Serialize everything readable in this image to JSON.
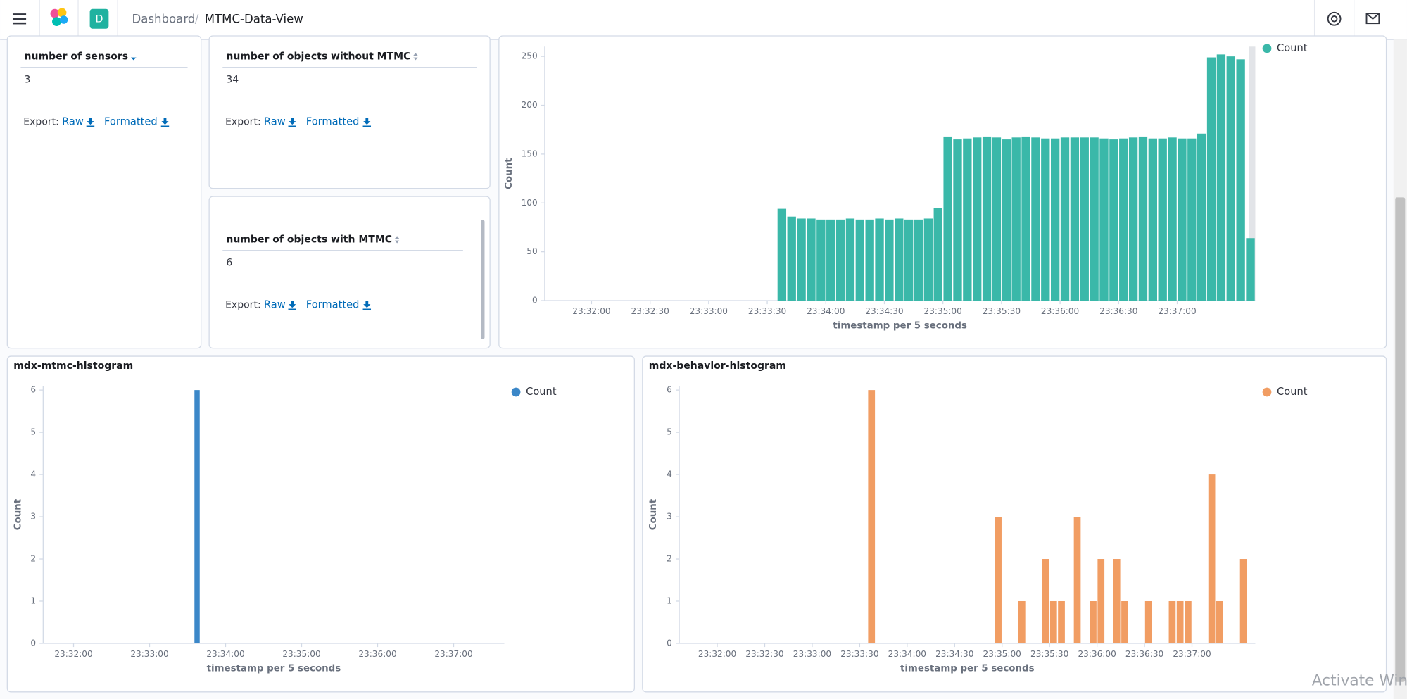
{
  "header": {
    "avatar": "D",
    "breadcrumbs": [
      "Dashboard",
      "MTMC-Data-View"
    ],
    "separator": "/"
  },
  "metrics": [
    {
      "title": "number of sensors",
      "value": 3,
      "export_label": "Export:",
      "raw": "Raw",
      "formatted": "Formatted"
    },
    {
      "title": "number of objects without MTMC",
      "value": 34,
      "export_label": "Export:",
      "raw": "Raw",
      "formatted": "Formatted"
    },
    {
      "title": "number of objects with MTMC",
      "value": 6,
      "export_label": "Export:",
      "raw": "Raw",
      "formatted": "Formatted"
    }
  ],
  "chart_data": [
    {
      "type": "bar",
      "x_label": "timestamp per 5 seconds",
      "y_label": "Count",
      "legend": "top-right",
      "x": [
        "23:33:35",
        "23:33:40",
        "23:33:45",
        "23:33:50",
        "23:33:55",
        "23:34:00",
        "23:34:05",
        "23:34:10",
        "23:34:15",
        "23:34:20",
        "23:34:25",
        "23:34:30",
        "23:34:35",
        "23:34:40",
        "23:34:45",
        "23:34:50",
        "23:34:55",
        "23:35:00",
        "23:35:05",
        "23:35:10",
        "23:35:15",
        "23:35:20",
        "23:35:25",
        "23:35:30",
        "23:35:35",
        "23:35:40",
        "23:35:45",
        "23:35:50",
        "23:35:55",
        "23:36:00",
        "23:36:05",
        "23:36:10",
        "23:36:15",
        "23:36:20",
        "23:36:25",
        "23:36:30",
        "23:36:35",
        "23:36:40",
        "23:36:45",
        "23:36:50",
        "23:36:55",
        "23:37:00",
        "23:37:05",
        "23:37:10",
        "23:37:15",
        "23:37:20",
        "23:37:25",
        "23:37:30",
        "23:37:35"
      ],
      "series": [
        {
          "name": "Count",
          "color": "#3ab8a9",
          "values": [
            94,
            86,
            84,
            84,
            83,
            83,
            83,
            84,
            83,
            83,
            84,
            83,
            84,
            83,
            83,
            84,
            95,
            168,
            165,
            166,
            167,
            168,
            167,
            165,
            167,
            168,
            167,
            166,
            166,
            167,
            167,
            167,
            167,
            166,
            165,
            166,
            167,
            168,
            166,
            166,
            167,
            166,
            166,
            171,
            249,
            252,
            250,
            247,
            64
          ]
        }
      ],
      "xlim": [
        "23:31:36",
        "23:37:40"
      ],
      "xticks": [
        "23:32:00",
        "23:32:30",
        "23:33:00",
        "23:33:30",
        "23:34:00",
        "23:34:30",
        "23:35:00",
        "23:35:30",
        "23:36:00",
        "23:36:30",
        "23:37:00"
      ],
      "ylim": [
        0,
        260
      ],
      "yticks": [
        0,
        50,
        100,
        150,
        200,
        250
      ]
    },
    {
      "type": "bar",
      "title": "mdx-mtmc-histogram",
      "x_label": "timestamp per 5 seconds",
      "y_label": "Count",
      "legend": "top-right",
      "x": [
        "23:33:35"
      ],
      "series": [
        {
          "name": "Count",
          "color": "#3b87c8",
          "values": [
            6
          ]
        }
      ],
      "xlim": [
        "23:31:36",
        "23:37:40"
      ],
      "xticks": [
        "23:32:00",
        "23:33:00",
        "23:34:00",
        "23:35:00",
        "23:36:00",
        "23:37:00"
      ],
      "ylim": [
        0,
        6.1
      ],
      "yticks": [
        0,
        1,
        2,
        3,
        4,
        5,
        6
      ]
    },
    {
      "type": "bar",
      "title": "mdx-behavior-histogram",
      "x_label": "timestamp per 5 seconds",
      "y_label": "Count",
      "legend": "top-right",
      "x": [
        "23:33:35",
        "23:34:55",
        "23:35:10",
        "23:35:25",
        "23:35:30",
        "23:35:35",
        "23:35:45",
        "23:35:55",
        "23:36:00",
        "23:36:10",
        "23:36:15",
        "23:36:30",
        "23:36:45",
        "23:36:50",
        "23:36:55",
        "23:37:10",
        "23:37:15",
        "23:37:30"
      ],
      "series": [
        {
          "name": "Count",
          "color": "#f19d63",
          "values": [
            6,
            3,
            1,
            2,
            1,
            1,
            3,
            1,
            2,
            2,
            1,
            1,
            1,
            1,
            1,
            4,
            1,
            2
          ]
        }
      ],
      "xlim": [
        "23:31:36",
        "23:37:40"
      ],
      "xticks": [
        "23:32:00",
        "23:32:30",
        "23:33:00",
        "23:33:30",
        "23:34:00",
        "23:34:30",
        "23:35:00",
        "23:35:30",
        "23:36:00",
        "23:36:30",
        "23:37:00"
      ],
      "ylim": [
        0,
        6.1
      ],
      "yticks": [
        0,
        1,
        2,
        3,
        4,
        5,
        6
      ]
    }
  ],
  "watermark": "Activate Win"
}
